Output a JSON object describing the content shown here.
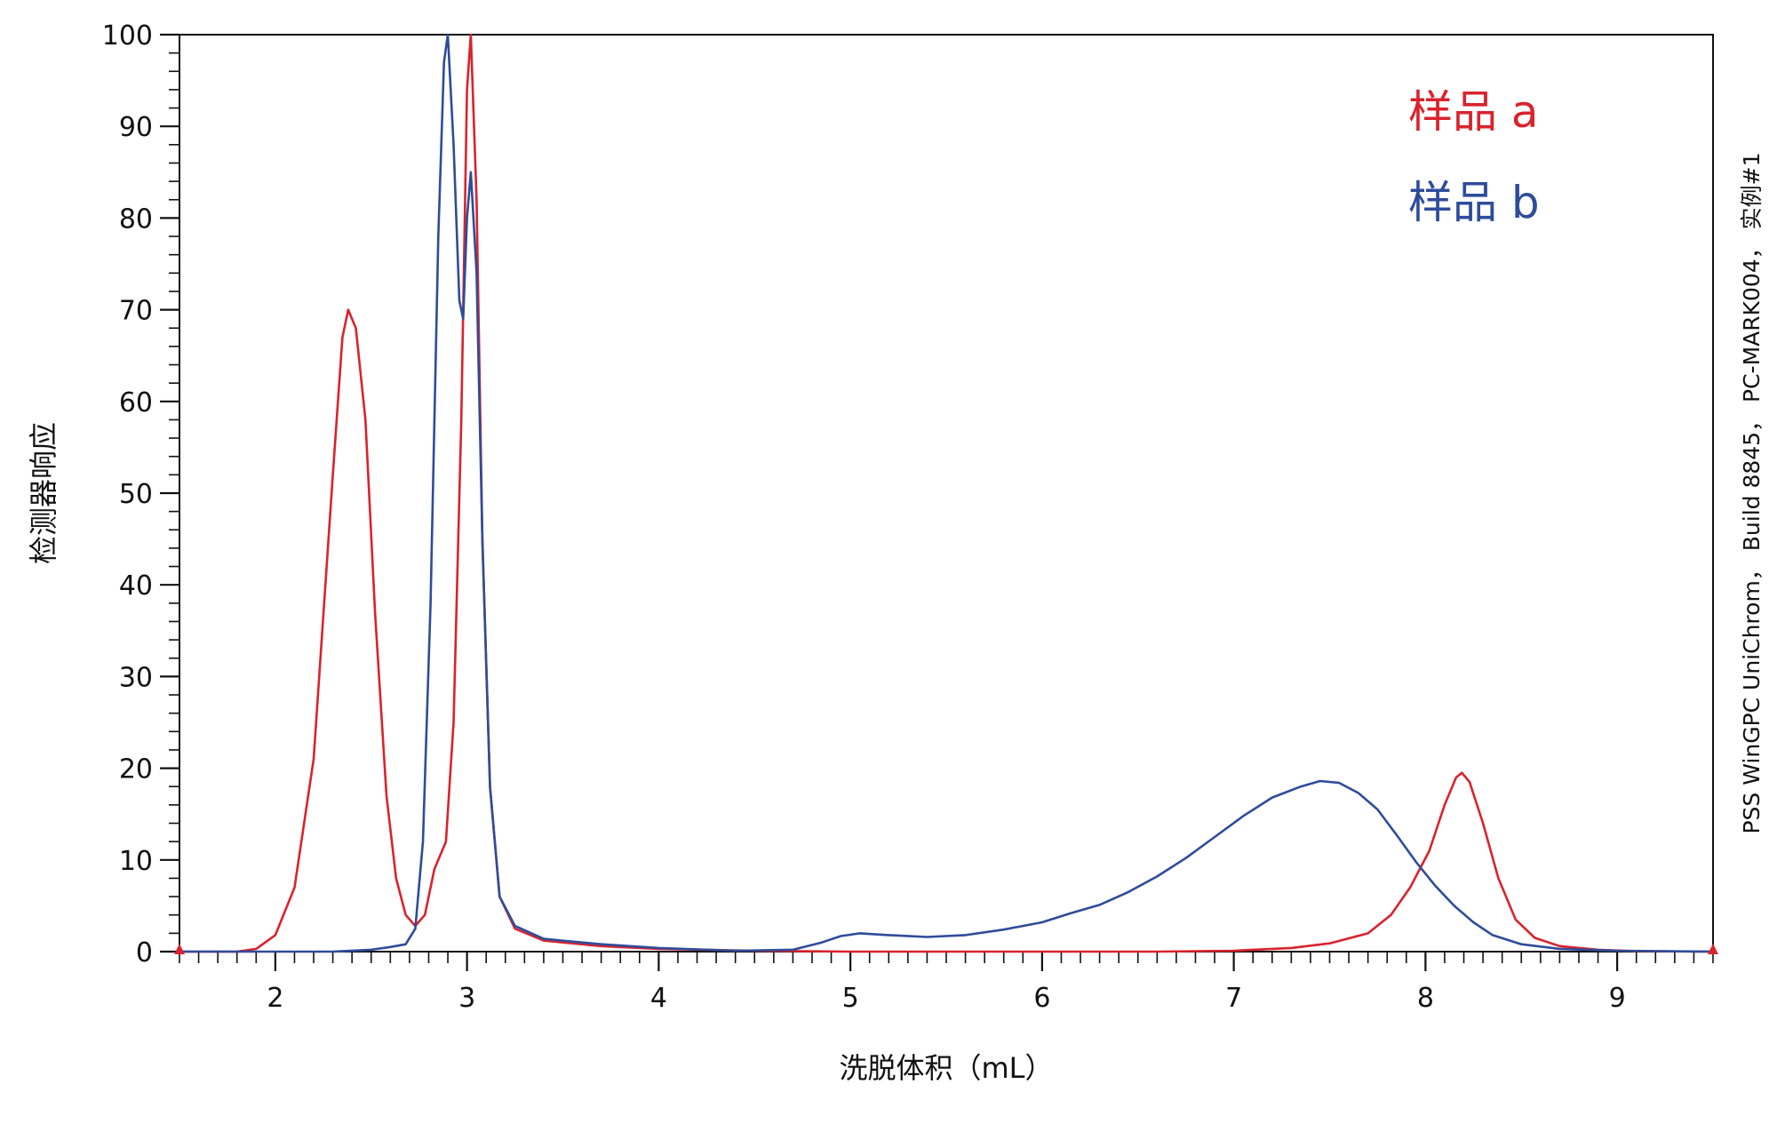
{
  "chart_data": {
    "type": "line",
    "xlabel": "洗脱体积（mL）",
    "ylabel": "检测器响应",
    "xlim": [
      1.5,
      9.5
    ],
    "ylim": [
      0,
      100
    ],
    "x_ticks": [
      2,
      3,
      4,
      5,
      6,
      7,
      8,
      9
    ],
    "y_ticks": [
      0,
      10,
      20,
      30,
      40,
      50,
      60,
      70,
      80,
      90,
      100
    ],
    "grid": false,
    "legend_position": "top-right",
    "side_note": "PSS WinGPC UniChrom， Build 8845， PC-MARK004， 实例#1",
    "series": [
      {
        "name": "样品 a",
        "color": "#d9232d",
        "points": [
          [
            1.5,
            0
          ],
          [
            1.8,
            0
          ],
          [
            1.9,
            0.3
          ],
          [
            2.0,
            1.8
          ],
          [
            2.1,
            7
          ],
          [
            2.2,
            21
          ],
          [
            2.3,
            52
          ],
          [
            2.35,
            67
          ],
          [
            2.38,
            70
          ],
          [
            2.42,
            68
          ],
          [
            2.47,
            58
          ],
          [
            2.52,
            37
          ],
          [
            2.58,
            17
          ],
          [
            2.63,
            8
          ],
          [
            2.68,
            4
          ],
          [
            2.73,
            2.8
          ],
          [
            2.78,
            4
          ],
          [
            2.83,
            9
          ],
          [
            2.89,
            12
          ],
          [
            2.93,
            25
          ],
          [
            2.97,
            58
          ],
          [
            3.0,
            94
          ],
          [
            3.02,
            100
          ],
          [
            3.05,
            82
          ],
          [
            3.08,
            45
          ],
          [
            3.12,
            18
          ],
          [
            3.17,
            6
          ],
          [
            3.25,
            2.5
          ],
          [
            3.4,
            1.2
          ],
          [
            3.7,
            0.6
          ],
          [
            4.0,
            0.3
          ],
          [
            4.5,
            0.1
          ],
          [
            5.0,
            0
          ],
          [
            6.0,
            0
          ],
          [
            6.6,
            0
          ],
          [
            7.0,
            0.1
          ],
          [
            7.3,
            0.4
          ],
          [
            7.5,
            0.9
          ],
          [
            7.7,
            2
          ],
          [
            7.82,
            4
          ],
          [
            7.92,
            7
          ],
          [
            8.02,
            11
          ],
          [
            8.1,
            16
          ],
          [
            8.16,
            19
          ],
          [
            8.19,
            19.5
          ],
          [
            8.23,
            18.5
          ],
          [
            8.3,
            14
          ],
          [
            8.38,
            8
          ],
          [
            8.47,
            3.5
          ],
          [
            8.57,
            1.5
          ],
          [
            8.7,
            0.6
          ],
          [
            8.9,
            0.2
          ],
          [
            9.1,
            0.05
          ],
          [
            9.5,
            0
          ]
        ]
      },
      {
        "name": "样品 b",
        "color": "#2e4c9a",
        "points": [
          [
            1.5,
            0
          ],
          [
            2.3,
            0
          ],
          [
            2.5,
            0.2
          ],
          [
            2.6,
            0.5
          ],
          [
            2.68,
            0.8
          ],
          [
            2.73,
            2.5
          ],
          [
            2.77,
            12
          ],
          [
            2.81,
            38
          ],
          [
            2.85,
            78
          ],
          [
            2.88,
            97
          ],
          [
            2.9,
            100
          ],
          [
            2.93,
            88
          ],
          [
            2.96,
            71
          ],
          [
            2.98,
            69
          ],
          [
            3.0,
            80
          ],
          [
            3.02,
            85
          ],
          [
            3.05,
            74
          ],
          [
            3.08,
            45
          ],
          [
            3.12,
            18
          ],
          [
            3.17,
            6
          ],
          [
            3.25,
            2.8
          ],
          [
            3.4,
            1.4
          ],
          [
            3.7,
            0.8
          ],
          [
            4.0,
            0.4
          ],
          [
            4.4,
            0.1
          ],
          [
            4.7,
            0.2
          ],
          [
            4.85,
            1
          ],
          [
            4.95,
            1.7
          ],
          [
            5.05,
            2
          ],
          [
            5.2,
            1.8
          ],
          [
            5.4,
            1.6
          ],
          [
            5.6,
            1.8
          ],
          [
            5.8,
            2.4
          ],
          [
            6.0,
            3.2
          ],
          [
            6.15,
            4.2
          ],
          [
            6.3,
            5.1
          ],
          [
            6.45,
            6.5
          ],
          [
            6.6,
            8.2
          ],
          [
            6.75,
            10.2
          ],
          [
            6.9,
            12.5
          ],
          [
            7.05,
            14.8
          ],
          [
            7.2,
            16.8
          ],
          [
            7.35,
            18
          ],
          [
            7.45,
            18.6
          ],
          [
            7.55,
            18.4
          ],
          [
            7.65,
            17.3
          ],
          [
            7.75,
            15.5
          ],
          [
            7.85,
            12.7
          ],
          [
            7.95,
            9.8
          ],
          [
            8.05,
            7.2
          ],
          [
            8.15,
            5
          ],
          [
            8.25,
            3.2
          ],
          [
            8.35,
            1.8
          ],
          [
            8.5,
            0.8
          ],
          [
            8.7,
            0.3
          ],
          [
            9.0,
            0.1
          ],
          [
            9.5,
            0
          ]
        ]
      }
    ]
  }
}
